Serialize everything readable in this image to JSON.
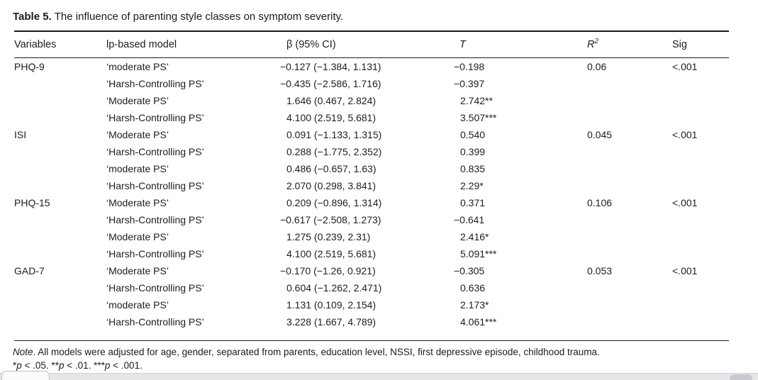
{
  "title": {
    "label": "Table 5.",
    "text": "The influence of parenting style classes on symptom severity."
  },
  "table": {
    "headers": [
      {
        "key": "variable",
        "text": "Variables"
      },
      {
        "key": "model",
        "text": "lp-based model"
      },
      {
        "key": "beta",
        "text": "β (95% CI)"
      },
      {
        "key": "t",
        "text": "T",
        "italic": true
      },
      {
        "key": "r2",
        "text": "R",
        "sup": "2",
        "italic": true
      },
      {
        "key": "sig",
        "text": "Sig"
      }
    ],
    "rows": [
      {
        "variable": "PHQ-9",
        "model": "‘moderate PS’",
        "beta": "−0.127 (−1.384, 1.131)",
        "t": "−0.198",
        "r2": "0.06",
        "sig": "<.001"
      },
      {
        "variable": "",
        "model": "‘Harsh-Controlling PS’",
        "beta": "−0.435 (−2.586, 1.716)",
        "t": "−0.397",
        "r2": "",
        "sig": ""
      },
      {
        "variable": "",
        "model": "‘Moderate PS’",
        "beta": "1.646 (0.467, 2.824)",
        "t": "2.742**",
        "r2": "",
        "sig": ""
      },
      {
        "variable": "",
        "model": "‘Harsh-Controlling PS’",
        "beta": "4.100 (2.519, 5.681)",
        "t": "3.507***",
        "r2": "",
        "sig": ""
      },
      {
        "variable": "ISI",
        "model": "‘Moderate PS’",
        "beta": "0.091 (−1.133, 1.315)",
        "t": "0.540",
        "r2": "0.045",
        "sig": "<.001"
      },
      {
        "variable": "",
        "model": "‘Harsh-Controlling PS’",
        "beta": "0.288 (−1.775, 2.352)",
        "t": "0.399",
        "r2": "",
        "sig": ""
      },
      {
        "variable": "",
        "model": "‘moderate PS’",
        "beta": "0.486 (−0.657, 1.63)",
        "t": "0.835",
        "r2": "",
        "sig": ""
      },
      {
        "variable": "",
        "model": "‘Harsh-Controlling PS’",
        "beta": "2.070 (0.298, 3.841)",
        "t": "2.29*",
        "r2": "",
        "sig": ""
      },
      {
        "variable": "PHQ-15",
        "model": "‘Moderate PS’",
        "beta": "0.209 (−0.896, 1.314)",
        "t": "0.371",
        "r2": "0.106",
        "sig": "<.001"
      },
      {
        "variable": "",
        "model": "‘Harsh-Controlling PS’",
        "beta": "−0.617 (−2.508, 1.273)",
        "t": "−0.641",
        "r2": "",
        "sig": ""
      },
      {
        "variable": "",
        "model": "‘Moderate PS’",
        "beta": "1.275 (0.239, 2.31)",
        "t": "2.416*",
        "r2": "",
        "sig": ""
      },
      {
        "variable": "",
        "model": "‘Harsh-Controlling PS’",
        "beta": "4.100 (2.519, 5.681)",
        "t": "5.091***",
        "r2": "",
        "sig": ""
      },
      {
        "variable": "GAD-7",
        "model": "‘Moderate PS’",
        "beta": "−0.170 (−1.26, 0.921)",
        "t": "−0.305",
        "r2": "0.053",
        "sig": "<.001"
      },
      {
        "variable": "",
        "model": "‘Harsh-Controlling PS’",
        "beta": "0.604 (−1.262, 2.471)",
        "t": "0.636",
        "r2": "",
        "sig": ""
      },
      {
        "variable": "",
        "model": "‘moderate PS’",
        "beta": "1.131 (0.109, 2.154)",
        "t": "2.173*",
        "r2": "",
        "sig": ""
      },
      {
        "variable": "",
        "model": "‘Harsh-Controlling PS’",
        "beta": "3.228 (1.667, 4.789)",
        "t": "4.061***",
        "r2": "",
        "sig": ""
      }
    ]
  },
  "note": {
    "lead": "Note",
    "body": ". All models were adjusted for age, gender, separated from parents, education level, NSSI, first depressive episode, childhood trauma.",
    "significance": "*p < .05. **p < .01. ***p < .001."
  },
  "colors": {
    "text": "#1d1d1f",
    "rule": "#1c1c1e",
    "scrollbar_track": "#e6e6e9",
    "scrollbar_thumb": "#c9c9cf"
  }
}
